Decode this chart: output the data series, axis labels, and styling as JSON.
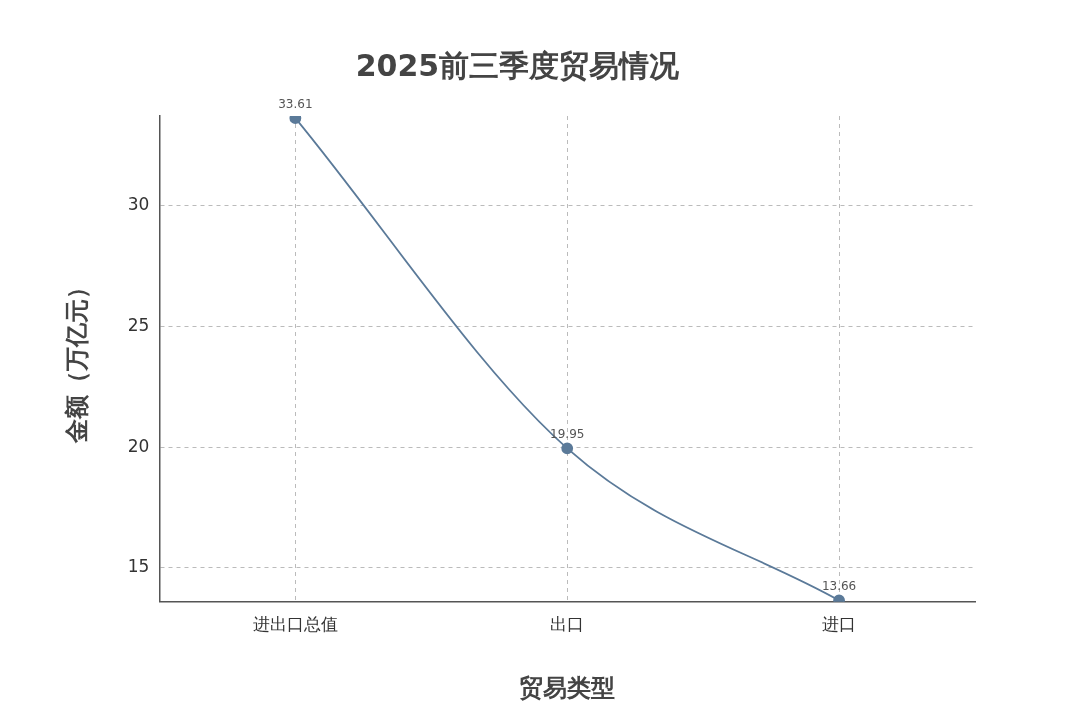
{
  "chart_data": {
    "type": "line",
    "title": "2025前三季度贸易情况",
    "xlabel": "贸易类型",
    "ylabel": "金额（万亿元）",
    "categories": [
      "进出口总值",
      "出口",
      "进口"
    ],
    "series": [
      {
        "color": "#5b7a99",
        "values": [
          33.61,
          19.95,
          13.66
        ]
      }
    ],
    "ylim": [
      13.6,
      33.7
    ],
    "yticks": [
      15,
      20,
      25,
      30
    ],
    "grid": true,
    "legend": false,
    "marker": "circle",
    "line_style": "solid",
    "data_labels": true
  }
}
